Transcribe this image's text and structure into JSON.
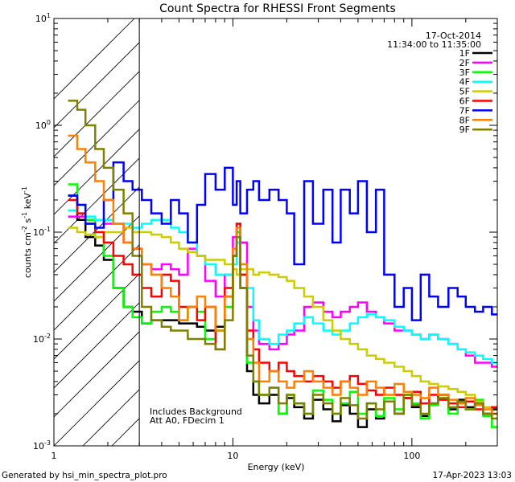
{
  "chart_data": {
    "type": "line",
    "title": "Count Spectra for RHESSI Front Segments",
    "xlabel": "Energy (keV)",
    "ylabel_parts": [
      "counts cm",
      "-2",
      " s",
      "-1",
      " keV",
      "-1"
    ],
    "x_scale": "log",
    "y_scale": "log",
    "xlim": [
      1,
      300
    ],
    "ylim": [
      0.001,
      10
    ],
    "x_ticks": [
      {
        "value": 1,
        "label": "1"
      },
      {
        "value": 10,
        "label": "10"
      },
      {
        "value": 100,
        "label": "100"
      }
    ],
    "y_ticks": [
      {
        "value": 0.001,
        "base": "10",
        "exp": "-3"
      },
      {
        "value": 0.01,
        "base": "10",
        "exp": "-2"
      },
      {
        "value": 0.1,
        "base": "10",
        "exp": "-1"
      },
      {
        "value": 1,
        "base": "10",
        "exp": "0"
      },
      {
        "value": 10,
        "base": "10",
        "exp": "1"
      }
    ],
    "excluded_region": {
      "from": 1,
      "to": 3
    },
    "info_lines": [
      "17-Oct-2014",
      "11:34:00 to 11:35:00"
    ],
    "annotations": [
      "Includes Background",
      "Att A0, FDecim 1"
    ],
    "footer_left": "Generated by hsi_min_spectra_plot.pro",
    "footer_right": "17-Apr-2023 13:03",
    "series": [
      {
        "name": "1F",
        "color": "#000000",
        "x": [
          1.2,
          1.35,
          1.5,
          1.7,
          1.9,
          2.15,
          2.45,
          2.75,
          3.1,
          3.5,
          4,
          4.5,
          5,
          5.6,
          6.3,
          7,
          8,
          9,
          10,
          10.5,
          11,
          12,
          13,
          14,
          16,
          18,
          20,
          22,
          25,
          28,
          32,
          36,
          40,
          45,
          50,
          56,
          63,
          70,
          80,
          90,
          100,
          112,
          125,
          140,
          160,
          180,
          200,
          225,
          250,
          280
        ],
        "values": [
          0.22,
          0.13,
          0.09,
          0.075,
          0.055,
          0.03,
          0.02,
          0.018,
          0.014,
          0.015,
          0.015,
          0.015,
          0.014,
          0.014,
          0.013,
          0.012,
          0.013,
          0.025,
          0.06,
          0.1,
          0.03,
          0.005,
          0.003,
          0.0025,
          0.003,
          0.002,
          0.0028,
          0.0023,
          0.0018,
          0.0027,
          0.0022,
          0.0017,
          0.0024,
          0.002,
          0.0015,
          0.0022,
          0.0018,
          0.0026,
          0.002,
          0.0028,
          0.0023,
          0.0019,
          0.0025,
          0.003,
          0.0022,
          0.0027,
          0.0023,
          0.0026,
          0.002,
          0.0022
        ]
      },
      {
        "name": "2F",
        "color": "#ff00ff",
        "x": [
          1.2,
          1.35,
          1.5,
          1.7,
          1.9,
          2.15,
          2.45,
          2.75,
          3.1,
          3.5,
          4,
          4.5,
          5,
          5.6,
          6.3,
          7,
          8,
          9,
          10,
          10.5,
          11,
          12,
          13,
          14,
          16,
          18,
          20,
          22,
          25,
          28,
          32,
          36,
          40,
          45,
          50,
          56,
          63,
          70,
          80,
          90,
          100,
          112,
          125,
          140,
          160,
          180,
          200,
          225,
          250,
          280
        ],
        "values": [
          0.14,
          0.14,
          0.13,
          0.13,
          0.12,
          0.12,
          0.08,
          0.07,
          0.05,
          0.045,
          0.05,
          0.045,
          0.04,
          0.07,
          0.06,
          0.035,
          0.025,
          0.04,
          0.09,
          0.12,
          0.08,
          0.02,
          0.012,
          0.009,
          0.008,
          0.009,
          0.011,
          0.012,
          0.02,
          0.022,
          0.018,
          0.016,
          0.018,
          0.02,
          0.022,
          0.018,
          0.016,
          0.014,
          0.012,
          0.012,
          0.011,
          0.01,
          0.011,
          0.01,
          0.009,
          0.008,
          0.007,
          0.006,
          0.006,
          0.0055
        ]
      },
      {
        "name": "3F",
        "color": "#00ff00",
        "x": [
          1.2,
          1.35,
          1.5,
          1.7,
          1.9,
          2.15,
          2.45,
          2.75,
          3.1,
          3.5,
          4,
          4.5,
          5,
          5.6,
          6.3,
          7,
          8,
          9,
          10,
          10.5,
          11,
          12,
          13,
          14,
          16,
          18,
          20,
          22,
          25,
          28,
          32,
          36,
          40,
          45,
          50,
          56,
          63,
          70,
          80,
          90,
          100,
          112,
          125,
          140,
          160,
          180,
          200,
          225,
          250,
          280
        ],
        "values": [
          0.28,
          0.18,
          0.13,
          0.09,
          0.06,
          0.03,
          0.02,
          0.016,
          0.014,
          0.018,
          0.02,
          0.018,
          0.015,
          0.02,
          0.018,
          0.01,
          0.012,
          0.02,
          0.06,
          0.1,
          0.04,
          0.006,
          0.004,
          0.003,
          0.0035,
          0.002,
          0.003,
          0.0025,
          0.002,
          0.0033,
          0.0027,
          0.002,
          0.0025,
          0.0032,
          0.002,
          0.0025,
          0.0019,
          0.0028,
          0.0022,
          0.003,
          0.0025,
          0.0018,
          0.0024,
          0.0028,
          0.002,
          0.0025,
          0.0022,
          0.0027,
          0.0019,
          0.0015
        ]
      },
      {
        "name": "4F",
        "color": "#00ffff",
        "x": [
          1.2,
          1.35,
          1.5,
          1.7,
          1.9,
          2.15,
          2.45,
          2.75,
          3.1,
          3.5,
          4,
          4.5,
          5,
          5.6,
          6.3,
          7,
          8,
          9,
          10,
          10.5,
          11,
          12,
          13,
          14,
          16,
          18,
          20,
          22,
          25,
          28,
          32,
          36,
          40,
          45,
          50,
          56,
          63,
          70,
          80,
          90,
          100,
          112,
          125,
          140,
          160,
          180,
          200,
          225,
          250,
          280
        ],
        "values": [
          0.16,
          0.15,
          0.14,
          0.13,
          0.13,
          0.12,
          0.12,
          0.11,
          0.12,
          0.13,
          0.13,
          0.11,
          0.1,
          0.08,
          0.06,
          0.05,
          0.04,
          0.04,
          0.05,
          0.08,
          0.05,
          0.03,
          0.015,
          0.01,
          0.009,
          0.011,
          0.012,
          0.014,
          0.016,
          0.014,
          0.012,
          0.011,
          0.012,
          0.014,
          0.016,
          0.017,
          0.016,
          0.015,
          0.013,
          0.012,
          0.011,
          0.01,
          0.011,
          0.01,
          0.009,
          0.008,
          0.0075,
          0.007,
          0.0065,
          0.006
        ]
      },
      {
        "name": "5F",
        "color": "#cccc00",
        "x": [
          1.2,
          1.35,
          1.5,
          1.7,
          1.9,
          2.15,
          2.45,
          2.75,
          3.1,
          3.5,
          4,
          4.5,
          5,
          5.6,
          6.3,
          7,
          8,
          9,
          10,
          10.5,
          11,
          12,
          13,
          14,
          16,
          18,
          20,
          22,
          25,
          28,
          32,
          36,
          40,
          45,
          50,
          56,
          63,
          70,
          80,
          90,
          100,
          112,
          125,
          140,
          160,
          180,
          200,
          225,
          250,
          280
        ],
        "values": [
          0.11,
          0.1,
          0.095,
          0.09,
          0.1,
          0.1,
          0.11,
          0.1,
          0.1,
          0.095,
          0.09,
          0.08,
          0.07,
          0.065,
          0.06,
          0.055,
          0.055,
          0.05,
          0.045,
          0.04,
          0.045,
          0.045,
          0.04,
          0.042,
          0.04,
          0.038,
          0.035,
          0.03,
          0.025,
          0.02,
          0.015,
          0.012,
          0.01,
          0.009,
          0.008,
          0.007,
          0.0065,
          0.006,
          0.0055,
          0.005,
          0.0045,
          0.004,
          0.0038,
          0.0036,
          0.0034,
          0.0032,
          0.003,
          0.0026,
          0.0023,
          0.002
        ]
      },
      {
        "name": "6F",
        "color": "#ff0000",
        "x": [
          1.2,
          1.35,
          1.5,
          1.7,
          1.9,
          2.15,
          2.45,
          2.75,
          3.1,
          3.5,
          4,
          4.5,
          5,
          5.6,
          6.3,
          7,
          8,
          9,
          10,
          10.5,
          11,
          12,
          13,
          14,
          16,
          18,
          20,
          22,
          25,
          28,
          32,
          36,
          40,
          45,
          50,
          56,
          63,
          70,
          80,
          90,
          100,
          112,
          125,
          140,
          160,
          180,
          200,
          225,
          250,
          280
        ],
        "values": [
          0.2,
          0.15,
          0.12,
          0.1,
          0.08,
          0.06,
          0.05,
          0.04,
          0.03,
          0.025,
          0.04,
          0.035,
          0.02,
          0.02,
          0.015,
          0.02,
          0.008,
          0.03,
          0.06,
          0.12,
          0.04,
          0.012,
          0.008,
          0.006,
          0.005,
          0.006,
          0.005,
          0.0045,
          0.004,
          0.0045,
          0.004,
          0.0035,
          0.004,
          0.0045,
          0.0038,
          0.0033,
          0.003,
          0.0035,
          0.003,
          0.0028,
          0.0032,
          0.0025,
          0.003,
          0.0027,
          0.0025,
          0.0023,
          0.0026,
          0.0022,
          0.002,
          0.0023
        ]
      },
      {
        "name": "7F",
        "color": "#0000ff",
        "x": [
          1.2,
          1.35,
          1.5,
          1.7,
          1.9,
          2.15,
          2.45,
          2.75,
          3.1,
          3.5,
          4,
          4.5,
          5,
          5.6,
          6.3,
          7,
          8,
          9,
          10,
          10.5,
          11,
          12,
          13,
          14,
          16,
          18,
          20,
          22,
          25,
          28,
          32,
          36,
          40,
          45,
          50,
          56,
          63,
          70,
          80,
          90,
          100,
          112,
          125,
          140,
          160,
          180,
          200,
          225,
          250,
          280
        ],
        "values": [
          0.22,
          0.18,
          0.12,
          0.11,
          0.2,
          0.45,
          0.3,
          0.25,
          0.2,
          0.15,
          0.12,
          0.2,
          0.15,
          0.08,
          0.18,
          0.35,
          0.25,
          0.4,
          0.18,
          0.3,
          0.15,
          0.25,
          0.3,
          0.2,
          0.25,
          0.2,
          0.15,
          0.05,
          0.3,
          0.12,
          0.25,
          0.08,
          0.25,
          0.15,
          0.3,
          0.1,
          0.25,
          0.04,
          0.02,
          0.03,
          0.015,
          0.04,
          0.025,
          0.02,
          0.03,
          0.025,
          0.02,
          0.018,
          0.02,
          0.017
        ]
      },
      {
        "name": "8F",
        "color": "#ff7f00",
        "x": [
          1.2,
          1.35,
          1.5,
          1.7,
          1.9,
          2.15,
          2.45,
          2.75,
          3.1,
          3.5,
          4,
          4.5,
          5,
          5.6,
          6.3,
          7,
          8,
          9,
          10,
          10.5,
          11,
          12,
          13,
          14,
          16,
          18,
          20,
          22,
          25,
          28,
          32,
          36,
          40,
          45,
          50,
          56,
          63,
          70,
          80,
          90,
          100,
          112,
          125,
          140,
          160,
          180,
          200,
          225,
          250,
          280
        ],
        "values": [
          0.8,
          0.6,
          0.45,
          0.3,
          0.2,
          0.12,
          0.08,
          0.07,
          0.05,
          0.04,
          0.03,
          0.025,
          0.015,
          0.02,
          0.025,
          0.02,
          0.012,
          0.025,
          0.07,
          0.11,
          0.05,
          0.01,
          0.006,
          0.004,
          0.005,
          0.004,
          0.0035,
          0.004,
          0.005,
          0.004,
          0.0035,
          0.003,
          0.004,
          0.0035,
          0.003,
          0.004,
          0.0035,
          0.003,
          0.0038,
          0.0032,
          0.003,
          0.0028,
          0.0035,
          0.003,
          0.0027,
          0.0025,
          0.0028,
          0.0024,
          0.0022,
          0.002
        ]
      },
      {
        "name": "9F",
        "color": "#808000",
        "x": [
          1.2,
          1.35,
          1.5,
          1.7,
          1.9,
          2.15,
          2.45,
          2.75,
          3.1,
          3.5,
          4,
          4.5,
          5,
          5.6,
          6.3,
          7,
          8,
          9,
          10,
          10.5,
          11,
          12,
          13,
          14,
          16,
          18,
          20,
          22,
          25,
          28,
          32,
          36,
          40,
          45,
          50,
          56,
          63,
          70,
          80,
          90,
          100,
          112,
          125,
          140,
          160,
          180,
          200,
          225,
          250,
          280
        ],
        "values": [
          1.7,
          1.4,
          1.0,
          0.6,
          0.4,
          0.25,
          0.15,
          0.06,
          0.02,
          0.015,
          0.013,
          0.012,
          0.012,
          0.01,
          0.01,
          0.009,
          0.008,
          0.015,
          0.06,
          0.09,
          0.03,
          0.007,
          0.004,
          0.003,
          0.0035,
          0.0025,
          0.003,
          0.0025,
          0.002,
          0.003,
          0.0025,
          0.002,
          0.0028,
          0.0024,
          0.0018,
          0.0025,
          0.0022,
          0.0026,
          0.002,
          0.003,
          0.0024,
          0.002,
          0.0025,
          0.0028,
          0.0023,
          0.0026,
          0.0022,
          0.0025,
          0.002,
          0.0018
        ]
      }
    ]
  }
}
